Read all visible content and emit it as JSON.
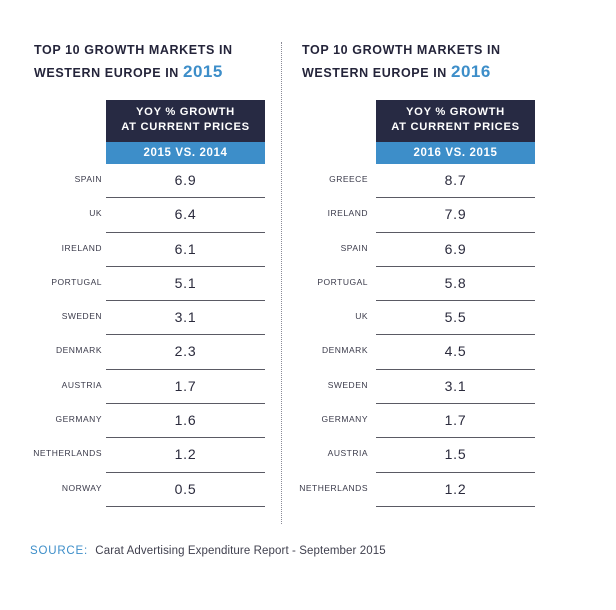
{
  "chart_data": [
    {
      "type": "table",
      "title_line1": "TOP 10 GROWTH MARKETS IN",
      "title_line2": "WESTERN EUROPE IN",
      "title_year": "2015",
      "column_header": [
        "YOY % GROWTH",
        "AT CURRENT PRICES"
      ],
      "column_subheader": "2015 VS. 2014",
      "categories": [
        "SPAIN",
        "UK",
        "IRELAND",
        "PORTUGAL",
        "SWEDEN",
        "DENMARK",
        "AUSTRIA",
        "GERMANY",
        "NETHERLANDS",
        "NORWAY"
      ],
      "values": [
        "6.9",
        "6.4",
        "6.1",
        "5.1",
        "3.1",
        "2.3",
        "1.7",
        "1.6",
        "1.2",
        "0.5"
      ]
    },
    {
      "type": "table",
      "title_line1": "TOP 10 GROWTH MARKETS IN",
      "title_line2": "WESTERN EUROPE IN",
      "title_year": "2016",
      "column_header": [
        "YOY % GROWTH",
        "AT CURRENT PRICES"
      ],
      "column_subheader": "2016 VS. 2015",
      "categories": [
        "GREECE",
        "IRELAND",
        "SPAIN",
        "PORTUGAL",
        "UK",
        "DENMARK",
        "SWEDEN",
        "GERMANY",
        "AUSTRIA",
        "NETHERLANDS"
      ],
      "values": [
        "8.7",
        "7.9",
        "6.9",
        "5.8",
        "5.5",
        "4.5",
        "3.1",
        "1.7",
        "1.5",
        "1.2"
      ]
    }
  ],
  "source": {
    "label": "SOURCE:",
    "text": "Carat Advertising Expenditure Report - September 2015"
  },
  "colors": {
    "accent_blue": "#3d8ec9",
    "header_dark": "#272a43"
  }
}
